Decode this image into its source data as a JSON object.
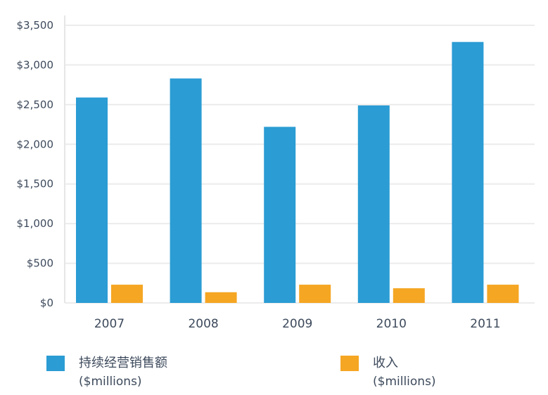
{
  "chart_data": {
    "type": "bar",
    "categories": [
      "2007",
      "2008",
      "2009",
      "2010",
      "2011"
    ],
    "series": [
      {
        "name": "持续经营销售额",
        "unit": "($millions)",
        "color": "#2b9cd4",
        "values": [
          2590,
          2830,
          2220,
          2490,
          3290
        ]
      },
      {
        "name": "收入",
        "unit": "($millions)",
        "color": "#f5a623",
        "values": [
          230,
          135,
          230,
          185,
          230
        ]
      }
    ],
    "ylim": [
      0,
      3500
    ],
    "yticks": [
      0,
      500,
      1000,
      1500,
      2000,
      2500,
      3000,
      3500
    ],
    "ytick_labels": [
      "$0",
      "$500",
      "$1,000",
      "$1,500",
      "$2,000",
      "$2,500",
      "$3,000",
      "$3,500"
    ],
    "grid": true,
    "legend_position": "bottom"
  }
}
